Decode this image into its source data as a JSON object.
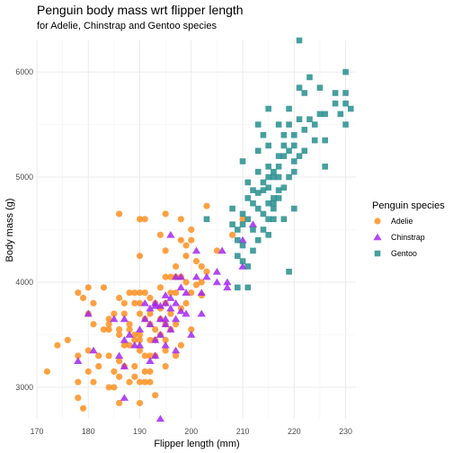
{
  "chart_data": {
    "type": "scatter",
    "title": "Penguin body mass wrt flipper length",
    "subtitle": "for Adelie, Chinstrap and Gentoo species",
    "xlabel": "Flipper length (mm)",
    "ylabel": "Body mass (g)",
    "xlim": [
      170,
      232
    ],
    "ylim": [
      2700,
      6300
    ],
    "xticks": [
      170,
      180,
      190,
      200,
      210,
      220,
      230
    ],
    "yticks": [
      3000,
      4000,
      5000,
      6000
    ],
    "grid": true,
    "legend": {
      "title": "Penguin species",
      "position": "right"
    },
    "series": [
      {
        "name": "Adelie",
        "marker": "circle",
        "color": "#ff8c1a",
        "points": [
          [
            172,
            3150
          ],
          [
            174,
            3400
          ],
          [
            176,
            3450
          ],
          [
            178,
            3900
          ],
          [
            178,
            3300
          ],
          [
            178,
            3050
          ],
          [
            178,
            2900
          ],
          [
            179,
            3850
          ],
          [
            179,
            2800
          ],
          [
            180,
            3950
          ],
          [
            180,
            3700
          ],
          [
            180,
            3350
          ],
          [
            180,
            3150
          ],
          [
            181,
            3600
          ],
          [
            181,
            3800
          ],
          [
            181,
            3050
          ],
          [
            182,
            3300
          ],
          [
            182,
            3200
          ],
          [
            183,
            3550
          ],
          [
            183,
            3950
          ],
          [
            184,
            3300
          ],
          [
            184,
            3650
          ],
          [
            184,
            3600
          ],
          [
            184,
            3550
          ],
          [
            184,
            3000
          ],
          [
            185,
            3150
          ],
          [
            185,
            3700
          ],
          [
            185,
            3000
          ],
          [
            186,
            4650
          ],
          [
            186,
            3850
          ],
          [
            186,
            3550
          ],
          [
            186,
            3500
          ],
          [
            186,
            3250
          ],
          [
            186,
            3100
          ],
          [
            186,
            2850
          ],
          [
            187,
            3700
          ],
          [
            187,
            3400
          ],
          [
            187,
            3800
          ],
          [
            187,
            3200
          ],
          [
            188,
            3600
          ],
          [
            188,
            3900
          ],
          [
            188,
            3400
          ],
          [
            188,
            3550
          ],
          [
            188,
            3050
          ],
          [
            189,
            3500
          ],
          [
            189,
            3100
          ],
          [
            189,
            3450
          ],
          [
            189,
            3900
          ],
          [
            189,
            3800
          ],
          [
            189,
            3200
          ],
          [
            190,
            4600
          ],
          [
            190,
            4250
          ],
          [
            190,
            3900
          ],
          [
            190,
            3800
          ],
          [
            190,
            3700
          ],
          [
            190,
            3500
          ],
          [
            190,
            3350
          ],
          [
            190,
            3050
          ],
          [
            190,
            2850
          ],
          [
            190,
            3450
          ],
          [
            191,
            4600
          ],
          [
            191,
            3300
          ],
          [
            191,
            3650
          ],
          [
            191,
            3900
          ],
          [
            191,
            3150
          ],
          [
            191,
            3050
          ],
          [
            192,
            3850
          ],
          [
            192,
            3700
          ],
          [
            192,
            3600
          ],
          [
            192,
            3450
          ],
          [
            192,
            3300
          ],
          [
            192,
            3150
          ],
          [
            192,
            3050
          ],
          [
            193,
            3800
          ],
          [
            193,
            3300
          ],
          [
            193,
            3450
          ],
          [
            193,
            3550
          ],
          [
            193,
            2925
          ],
          [
            194,
            4450
          ],
          [
            194,
            3950
          ],
          [
            194,
            3650
          ],
          [
            194,
            3500
          ],
          [
            194,
            3750
          ],
          [
            195,
            4650
          ],
          [
            195,
            4050
          ],
          [
            195,
            3800
          ],
          [
            195,
            3600
          ],
          [
            195,
            3450
          ],
          [
            195,
            3350
          ],
          [
            195,
            4300
          ],
          [
            195,
            3200
          ],
          [
            196,
            3900
          ],
          [
            196,
            3550
          ],
          [
            196,
            3700
          ],
          [
            196,
            4050
          ],
          [
            197,
            4050
          ],
          [
            197,
            3600
          ],
          [
            197,
            3900
          ],
          [
            197,
            4150
          ],
          [
            197,
            3300
          ],
          [
            198,
            4400
          ],
          [
            198,
            4050
          ],
          [
            198,
            3750
          ],
          [
            198,
            4600
          ],
          [
            198,
            3400
          ],
          [
            199,
            4350
          ],
          [
            199,
            4000
          ],
          [
            199,
            3800
          ],
          [
            199,
            4250
          ],
          [
            200,
            4500
          ],
          [
            200,
            4400
          ],
          [
            200,
            3900
          ],
          [
            200,
            3550
          ],
          [
            201,
            3975
          ],
          [
            201,
            4200
          ],
          [
            202,
            3875
          ],
          [
            202,
            4150
          ],
          [
            202,
            4000
          ],
          [
            203,
            4725
          ],
          [
            203,
            4100
          ],
          [
            205,
            4300
          ],
          [
            208,
            4450
          ],
          [
            210,
            4600
          ]
        ]
      },
      {
        "name": "Chinstrap",
        "marker": "triangle",
        "color": "#a020f0",
        "points": [
          [
            178,
            3250
          ],
          [
            180,
            3700
          ],
          [
            181,
            3350
          ],
          [
            185,
            3650
          ],
          [
            186,
            3300
          ],
          [
            187,
            3450
          ],
          [
            187,
            3200
          ],
          [
            187,
            3650
          ],
          [
            187,
            2900
          ],
          [
            188,
            3500
          ],
          [
            189,
            3400
          ],
          [
            190,
            3550
          ],
          [
            190,
            3400
          ],
          [
            191,
            3650
          ],
          [
            191,
            3800
          ],
          [
            192,
            3600
          ],
          [
            192,
            3750
          ],
          [
            192,
            3250
          ],
          [
            193,
            3450
          ],
          [
            193,
            3775
          ],
          [
            193,
            3800
          ],
          [
            193,
            3300
          ],
          [
            194,
            3500
          ],
          [
            194,
            3775
          ],
          [
            194,
            3650
          ],
          [
            194,
            2700
          ],
          [
            195,
            3875
          ],
          [
            195,
            3650
          ],
          [
            195,
            3800
          ],
          [
            195,
            3600
          ],
          [
            195,
            3400
          ],
          [
            196,
            3750
          ],
          [
            196,
            4450
          ],
          [
            196,
            3850
          ],
          [
            196,
            3550
          ],
          [
            197,
            3650
          ],
          [
            197,
            3800
          ],
          [
            197,
            4050
          ],
          [
            197,
            3350
          ],
          [
            198,
            3725
          ],
          [
            198,
            3950
          ],
          [
            198,
            4050
          ],
          [
            199,
            3700
          ],
          [
            199,
            3900
          ],
          [
            200,
            3500
          ],
          [
            201,
            4300
          ],
          [
            201,
            4050
          ],
          [
            202,
            3700
          ],
          [
            202,
            3900
          ],
          [
            203,
            4050
          ],
          [
            205,
            4100
          ],
          [
            205,
            4000
          ],
          [
            206,
            4300
          ],
          [
            207,
            3950
          ],
          [
            207,
            4000
          ],
          [
            210,
            4400
          ],
          [
            210,
            4150
          ],
          [
            212,
            4550
          ]
        ]
      },
      {
        "name": "Gentoo",
        "marker": "square",
        "color": "#1f8a8a",
        "points": [
          [
            203,
            4600
          ],
          [
            208,
            4550
          ],
          [
            208,
            4700
          ],
          [
            209,
            4400
          ],
          [
            209,
            4500
          ],
          [
            209,
            4250
          ],
          [
            209,
            3950
          ],
          [
            210,
            4650
          ],
          [
            210,
            4200
          ],
          [
            210,
            5150
          ],
          [
            210,
            4350
          ],
          [
            210,
            4550
          ],
          [
            211,
            4800
          ],
          [
            211,
            4150
          ],
          [
            211,
            4950
          ],
          [
            211,
            4600
          ],
          [
            211,
            3950
          ],
          [
            212,
            4750
          ],
          [
            212,
            4875
          ],
          [
            212,
            4300
          ],
          [
            212,
            4500
          ],
          [
            213,
            4850
          ],
          [
            213,
            5050
          ],
          [
            213,
            4400
          ],
          [
            213,
            4700
          ],
          [
            213,
            5250
          ],
          [
            213,
            5500
          ],
          [
            214,
            5400
          ],
          [
            214,
            4875
          ],
          [
            214,
            4650
          ],
          [
            214,
            4950
          ],
          [
            214,
            4500
          ],
          [
            215,
            4750
          ],
          [
            215,
            4900
          ],
          [
            215,
            5650
          ],
          [
            215,
            4600
          ],
          [
            215,
            5100
          ],
          [
            215,
            5000
          ],
          [
            215,
            4450
          ],
          [
            215,
            5300
          ],
          [
            216,
            5050
          ],
          [
            216,
            4800
          ],
          [
            216,
            4700
          ],
          [
            216,
            5000
          ],
          [
            216,
            4750
          ],
          [
            216,
            4600
          ],
          [
            217,
            5200
          ],
          [
            217,
            5000
          ],
          [
            217,
            4800
          ],
          [
            217,
            5500
          ],
          [
            217,
            4875
          ],
          [
            217,
            5100
          ],
          [
            218,
            5400
          ],
          [
            218,
            5200
          ],
          [
            218,
            4900
          ],
          [
            218,
            4600
          ],
          [
            218,
            5300
          ],
          [
            219,
            5250
          ],
          [
            219,
            5500
          ],
          [
            219,
            5000
          ],
          [
            219,
            5650
          ],
          [
            219,
            4100
          ],
          [
            220,
            5300
          ],
          [
            220,
            5400
          ],
          [
            220,
            5050
          ],
          [
            220,
            4700
          ],
          [
            220,
            5150
          ],
          [
            221,
            6300
          ],
          [
            221,
            5550
          ],
          [
            221,
            5850
          ],
          [
            221,
            5200
          ],
          [
            222,
            5250
          ],
          [
            222,
            5450
          ],
          [
            222,
            5800
          ],
          [
            223,
            5950
          ],
          [
            223,
            5550
          ],
          [
            224,
            5350
          ],
          [
            224,
            5500
          ],
          [
            225,
            5600
          ],
          [
            225,
            5850
          ],
          [
            226,
            5350
          ],
          [
            226,
            5600
          ],
          [
            226,
            5100
          ],
          [
            228,
            5700
          ],
          [
            228,
            5800
          ],
          [
            229,
            5600
          ],
          [
            230,
            6000
          ],
          [
            230,
            5800
          ],
          [
            230,
            5500
          ],
          [
            230,
            5700
          ],
          [
            231,
            5650
          ]
        ]
      }
    ]
  }
}
